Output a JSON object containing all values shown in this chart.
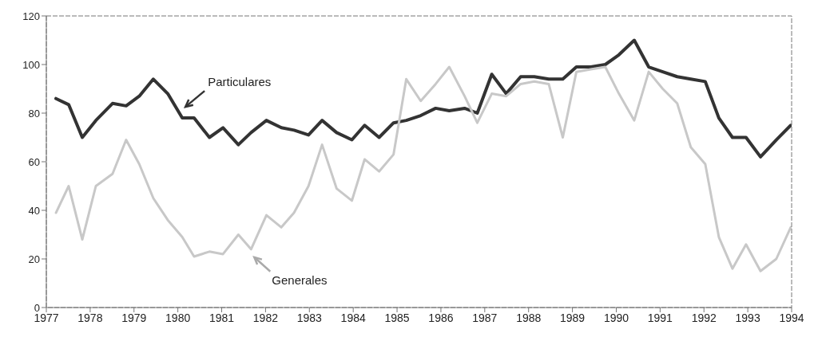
{
  "chart_data": {
    "type": "line",
    "x": [
      1977.22,
      1977.51,
      1977.82,
      1978.13,
      1978.51,
      1978.82,
      1979.12,
      1979.44,
      1979.77,
      1980.1,
      1980.37,
      1980.72,
      1981.03,
      1981.38,
      1981.67,
      1982.02,
      1982.36,
      1982.65,
      1982.98,
      1983.29,
      1983.62,
      1983.97,
      1984.26,
      1984.59,
      1984.92,
      1985.21,
      1985.54,
      1985.88,
      1986.19,
      1986.54,
      1986.83,
      1987.16,
      1987.49,
      1987.82,
      1988.13,
      1988.46,
      1988.78,
      1989.09,
      1989.42,
      1989.75,
      1990.06,
      1990.41,
      1990.74,
      1991.06,
      1991.39,
      1991.7,
      1992.03,
      1992.34,
      1992.65,
      1992.96,
      1993.29,
      1993.65,
      1993.98
    ],
    "series": [
      {
        "name": "Particulares",
        "color": "#333333",
        "values": [
          86,
          83.5,
          70,
          77,
          84,
          83,
          87,
          94,
          88,
          78,
          78,
          70,
          74,
          67,
          72,
          77,
          74,
          73,
          71,
          77,
          72,
          69,
          75,
          70,
          76,
          77,
          79,
          82,
          81,
          82,
          80,
          96,
          88,
          95,
          95,
          94,
          94,
          99,
          99,
          100,
          104,
          110,
          99,
          97,
          95,
          94,
          93,
          78,
          70,
          70,
          62,
          69,
          75
        ]
      },
      {
        "name": "Generales",
        "color": "#c8c8c8",
        "values": [
          39,
          50,
          28,
          50,
          55,
          69,
          59,
          45,
          36,
          29,
          21,
          23,
          22,
          30,
          24,
          38,
          33,
          39,
          50,
          67,
          49,
          44,
          61,
          56,
          63,
          94,
          85,
          92,
          99,
          87,
          76,
          88,
          87,
          92,
          93,
          92,
          70,
          97,
          98,
          99,
          88,
          77,
          97,
          90,
          84,
          66,
          59,
          29,
          16,
          26,
          15,
          20,
          33
        ]
      }
    ],
    "xlim": [
      1977,
      1994
    ],
    "xticks": [
      1977,
      1978,
      1979,
      1980,
      1981,
      1982,
      1983,
      1984,
      1985,
      1986,
      1987,
      1988,
      1989,
      1990,
      1991,
      1992,
      1993,
      1994
    ],
    "ylim": [
      0,
      120
    ],
    "yticks": [
      0,
      20,
      40,
      60,
      80,
      100,
      120
    ],
    "grid": false,
    "marker": "none",
    "line_style": "solid"
  }
}
